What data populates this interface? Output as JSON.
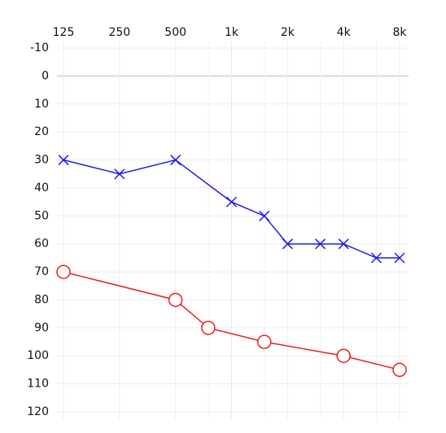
{
  "chart_data": {
    "type": "line",
    "xscale": "log",
    "y_inverted": true,
    "grid": true,
    "xlim": [
      125,
      8000
    ],
    "ylim": [
      -10,
      120
    ],
    "xticks": [
      125,
      250,
      500,
      {
        "value": 1000,
        "label": "1k"
      },
      {
        "value": 2000,
        "label": "2k"
      },
      {
        "value": 4000,
        "label": "4k"
      },
      {
        "value": 8000,
        "label": "8k"
      }
    ],
    "xminorticks": [
      750,
      1500,
      3000,
      6000
    ],
    "yticks": [
      -10,
      0,
      10,
      20,
      30,
      40,
      50,
      60,
      70,
      80,
      90,
      100,
      110,
      120
    ],
    "series": [
      {
        "color": "#1c1ce8",
        "marker": "x",
        "x": [
          125,
          250,
          500,
          1000,
          1500,
          2000,
          3000,
          4000,
          6000,
          8000
        ],
        "values": [
          30,
          35,
          30,
          45,
          50,
          60,
          60,
          60,
          65,
          65
        ]
      },
      {
        "color": "#e82020",
        "marker": "o",
        "x": [
          125,
          500,
          750,
          1500,
          4000,
          8000
        ],
        "values": [
          70,
          80,
          90,
          95,
          100,
          105
        ]
      }
    ]
  }
}
